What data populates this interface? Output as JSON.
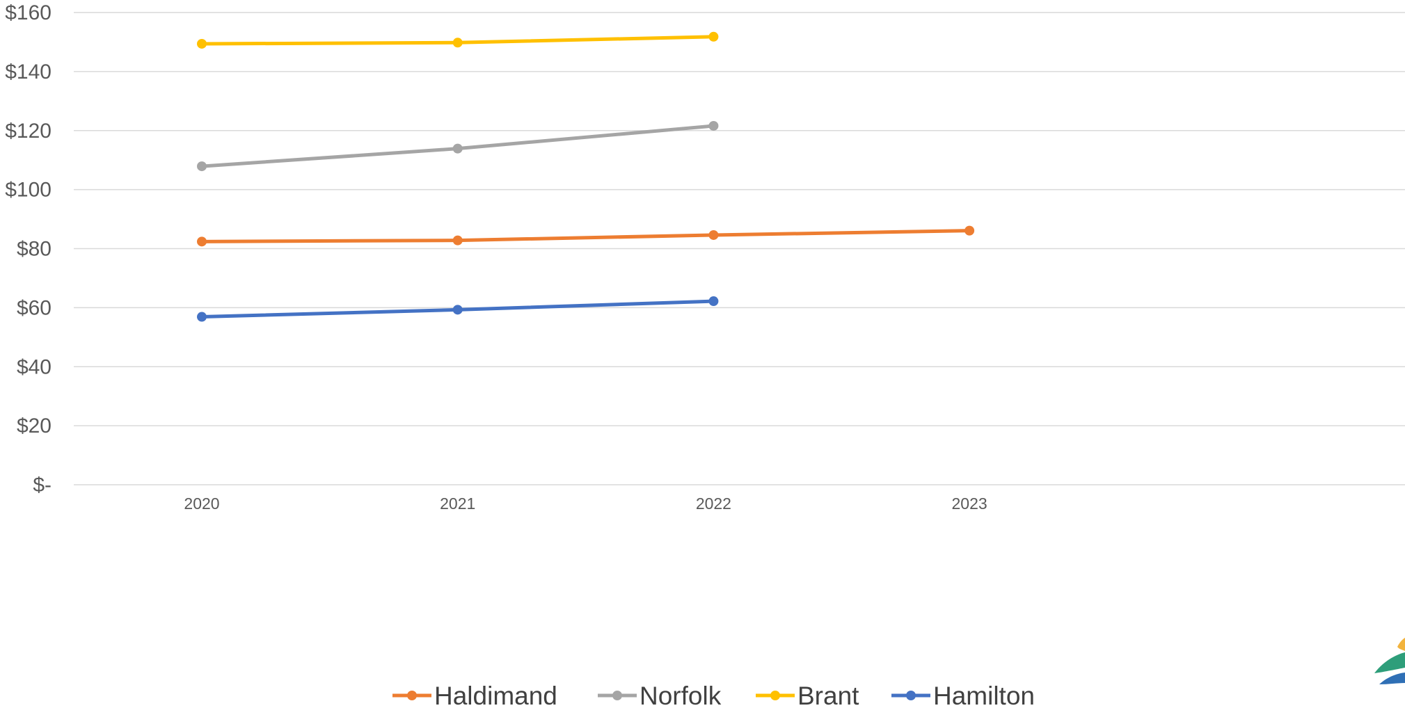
{
  "chart_data": {
    "type": "line",
    "categories": [
      "2020",
      "2021",
      "2022",
      "2023"
    ],
    "series": [
      {
        "name": "Haldimand",
        "color": "#ED7D31",
        "values": [
          82.4,
          82.8,
          84.6,
          86.1
        ]
      },
      {
        "name": "Norfolk",
        "color": "#A5A5A5",
        "values": [
          107.9,
          113.9,
          121.6,
          null
        ]
      },
      {
        "name": "Brant",
        "color": "#FFC000",
        "values": [
          149.4,
          149.8,
          151.8,
          null
        ]
      },
      {
        "name": "Hamilton",
        "color": "#4472C4",
        "values": [
          56.9,
          59.3,
          62.2,
          null
        ]
      }
    ],
    "ylim": [
      0,
      160
    ],
    "yticks": [
      {
        "value": 160,
        "label": "$160"
      },
      {
        "value": 140,
        "label": "$140"
      },
      {
        "value": 120,
        "label": "$120"
      },
      {
        "value": 100,
        "label": "$100"
      },
      {
        "value": 80,
        "label": "$80"
      },
      {
        "value": 60,
        "label": "$60"
      },
      {
        "value": 40,
        "label": "$40"
      },
      {
        "value": 20,
        "label": "$20"
      },
      {
        "value": 0,
        "label": "$-"
      }
    ],
    "grid": true,
    "legend_position": "bottom",
    "gridline_color": "#D9D9D9",
    "text_color": "#595959",
    "title": "",
    "xlabel": "",
    "ylabel": ""
  }
}
